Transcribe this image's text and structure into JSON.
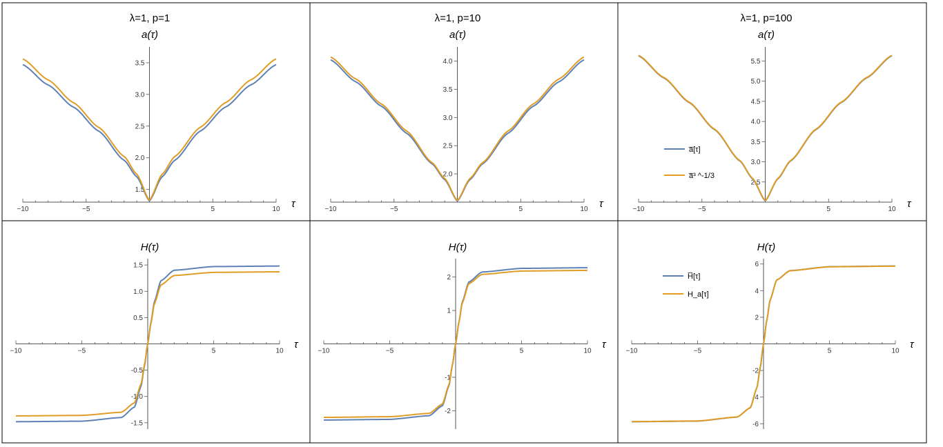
{
  "figure": {
    "panel_titles": [
      "λ=1, p=1",
      "λ=1, p=10",
      "λ=1, p=100"
    ],
    "top_ylabel": "a(τ)",
    "bottom_ylabel": "H(τ)",
    "xlabel": "τ",
    "colors": {
      "blue": "#5e81b5",
      "orange": "#e19c24",
      "border": "#000000",
      "axis": "#555555"
    },
    "legend_top": {
      "items": [
        "a̅[τ]",
        "a̅³ ^-1/3"
      ]
    },
    "legend_bottom": {
      "items": [
        "H̅[τ]",
        "H_a[τ]"
      ]
    }
  },
  "chart_data": [
    {
      "type": "line",
      "title": "λ=1, p=1",
      "ylabel": "a(τ)",
      "xlabel": "τ",
      "xlim": [
        -10,
        10
      ],
      "ylim": [
        1.3,
        3.75
      ],
      "xticks": [
        -10,
        -5,
        5,
        10
      ],
      "yticks": [
        1.5,
        2.0,
        2.5,
        3.0,
        3.5
      ],
      "ytick_labels": [
        "1.5",
        "2.0",
        "2.5",
        "3.0",
        "3.5"
      ],
      "series": [
        {
          "name": "a̅[τ]",
          "x": [
            -10,
            -8,
            -6,
            -4,
            -2,
            -1,
            0,
            1,
            2,
            4,
            6,
            8,
            10
          ],
          "y": [
            3.47,
            3.15,
            2.8,
            2.42,
            1.96,
            1.7,
            1.32,
            1.7,
            1.96,
            2.42,
            2.8,
            3.15,
            3.47
          ]
        },
        {
          "name": "a̅³ ^-1/3",
          "x": [
            -10,
            -8,
            -6,
            -4,
            -2,
            -1,
            0,
            1,
            2,
            4,
            6,
            8,
            10
          ],
          "y": [
            3.56,
            3.23,
            2.87,
            2.48,
            2.02,
            1.74,
            1.33,
            1.74,
            2.02,
            2.48,
            2.87,
            3.23,
            3.56
          ]
        }
      ]
    },
    {
      "type": "line",
      "title": "λ=1, p=10",
      "ylabel": "a(τ)",
      "xlabel": "τ",
      "xlim": [
        -10,
        10
      ],
      "ylim": [
        1.5,
        4.25
      ],
      "xticks": [
        -10,
        -5,
        5,
        10
      ],
      "yticks": [
        2.0,
        2.5,
        3.0,
        3.5,
        4.0
      ],
      "ytick_labels": [
        "2.0",
        "2.5",
        "3.0",
        "3.5",
        "4.0"
      ],
      "series": [
        {
          "name": "a̅[τ]",
          "x": [
            -10,
            -8,
            -6,
            -4,
            -2,
            -1,
            0,
            1,
            2,
            4,
            6,
            8,
            10
          ],
          "y": [
            4.02,
            3.63,
            3.2,
            2.72,
            2.18,
            1.9,
            1.52,
            1.9,
            2.18,
            2.72,
            3.2,
            3.63,
            4.02
          ]
        },
        {
          "name": "a̅³ ^-1/3",
          "x": [
            -10,
            -8,
            -6,
            -4,
            -2,
            -1,
            0,
            1,
            2,
            4,
            6,
            8,
            10
          ],
          "y": [
            4.07,
            3.68,
            3.24,
            2.76,
            2.2,
            1.92,
            1.53,
            1.92,
            2.2,
            2.76,
            3.24,
            3.68,
            4.07
          ]
        }
      ]
    },
    {
      "type": "line",
      "title": "λ=1, p=100",
      "ylabel": "a(τ)",
      "xlabel": "τ",
      "xlim": [
        -10,
        10
      ],
      "ylim": [
        2.0,
        5.85
      ],
      "xticks": [
        -10,
        -5,
        5,
        10
      ],
      "yticks": [
        2.5,
        3.0,
        3.5,
        4.0,
        4.5,
        5.0,
        5.5
      ],
      "ytick_labels": [
        "2.5",
        "3.0",
        "3.5",
        "4.0",
        "4.5",
        "5.0",
        "5.5"
      ],
      "series": [
        {
          "name": "a̅[τ]",
          "x": [
            -10,
            -8,
            -6,
            -4,
            -2,
            -1,
            0,
            1,
            2,
            4,
            6,
            8,
            10
          ],
          "y": [
            5.63,
            5.08,
            4.47,
            3.8,
            3.02,
            2.58,
            2.03,
            2.58,
            3.02,
            3.8,
            4.47,
            5.08,
            5.63
          ]
        },
        {
          "name": "a̅³ ^-1/3",
          "x": [
            -10,
            -8,
            -6,
            -4,
            -2,
            -1,
            0,
            1,
            2,
            4,
            6,
            8,
            10
          ],
          "y": [
            5.64,
            5.09,
            4.48,
            3.81,
            3.03,
            2.59,
            2.04,
            2.59,
            3.03,
            3.81,
            4.48,
            5.09,
            5.64
          ]
        }
      ]
    },
    {
      "type": "line",
      "ylabel": "H(τ)",
      "xlabel": "τ",
      "xlim": [
        -10,
        10
      ],
      "ylim": [
        -1.62,
        1.62
      ],
      "xticks": [
        -10,
        -5,
        5,
        10
      ],
      "yticks": [
        -1.5,
        -1.0,
        -0.5,
        0.5,
        1.0,
        1.5
      ],
      "ytick_labels": [
        "-1.5",
        "-1.0",
        "-0.5",
        "0.5",
        "1.0",
        "1.5"
      ],
      "series": [
        {
          "name": "H̅[τ]",
          "x": [
            -10,
            -5,
            -2,
            -1,
            -0.5,
            -0.25,
            0,
            0.25,
            0.5,
            1,
            2,
            5,
            10
          ],
          "y": [
            -1.48,
            -1.47,
            -1.4,
            -1.2,
            -0.8,
            -0.42,
            0,
            0.42,
            0.8,
            1.2,
            1.4,
            1.47,
            1.48
          ]
        },
        {
          "name": "H_a[τ]",
          "x": [
            -10,
            -5,
            -2,
            -1,
            -0.5,
            -0.25,
            0,
            0.25,
            0.5,
            1,
            2,
            5,
            10
          ],
          "y": [
            -1.37,
            -1.36,
            -1.3,
            -1.12,
            -0.76,
            -0.4,
            0,
            0.4,
            0.76,
            1.12,
            1.3,
            1.36,
            1.37
          ]
        }
      ]
    },
    {
      "type": "line",
      "ylabel": "H(τ)",
      "xlabel": "τ",
      "xlim": [
        -10,
        10
      ],
      "ylim": [
        -2.55,
        2.55
      ],
      "xticks": [
        -10,
        -5,
        5,
        10
      ],
      "yticks": [
        -2,
        -1,
        1,
        2
      ],
      "ytick_labels": [
        "-2",
        "-1",
        "1",
        "2"
      ],
      "series": [
        {
          "name": "H̅[τ]",
          "x": [
            -10,
            -5,
            -2,
            -1,
            -0.5,
            -0.25,
            0,
            0.25,
            0.5,
            1,
            2,
            5,
            10
          ],
          "y": [
            -2.28,
            -2.26,
            -2.15,
            -1.85,
            -1.25,
            -0.65,
            0,
            0.65,
            1.25,
            1.85,
            2.15,
            2.26,
            2.28
          ]
        },
        {
          "name": "H_a[τ]",
          "x": [
            -10,
            -5,
            -2,
            -1,
            -0.5,
            -0.25,
            0,
            0.25,
            0.5,
            1,
            2,
            5,
            10
          ],
          "y": [
            -2.2,
            -2.18,
            -2.08,
            -1.8,
            -1.22,
            -0.64,
            0,
            0.64,
            1.22,
            1.8,
            2.08,
            2.18,
            2.2
          ]
        }
      ]
    },
    {
      "type": "line",
      "ylabel": "H(τ)",
      "xlabel": "τ",
      "xlim": [
        -10,
        10
      ],
      "ylim": [
        -6.4,
        6.4
      ],
      "xticks": [
        -10,
        -5,
        5,
        10
      ],
      "yticks": [
        -6,
        -4,
        -2,
        2,
        4,
        6
      ],
      "ytick_labels": [
        "-6",
        "-4",
        "-2",
        "2",
        "4",
        "6"
      ],
      "series": [
        {
          "name": "H̅[τ]",
          "x": [
            -10,
            -5,
            -2,
            -1,
            -0.5,
            -0.25,
            0,
            0.25,
            0.5,
            1,
            2,
            5,
            10
          ],
          "y": [
            -5.85,
            -5.8,
            -5.5,
            -4.8,
            -3.3,
            -1.8,
            0,
            1.8,
            3.3,
            4.8,
            5.5,
            5.8,
            5.85
          ]
        },
        {
          "name": "H_a[τ]",
          "x": [
            -10,
            -5,
            -2,
            -1,
            -0.5,
            -0.25,
            0,
            0.25,
            0.5,
            1,
            2,
            5,
            10
          ],
          "y": [
            -5.84,
            -5.79,
            -5.49,
            -4.79,
            -3.29,
            -1.79,
            0,
            1.79,
            3.29,
            4.79,
            5.49,
            5.79,
            5.84
          ]
        }
      ]
    }
  ]
}
